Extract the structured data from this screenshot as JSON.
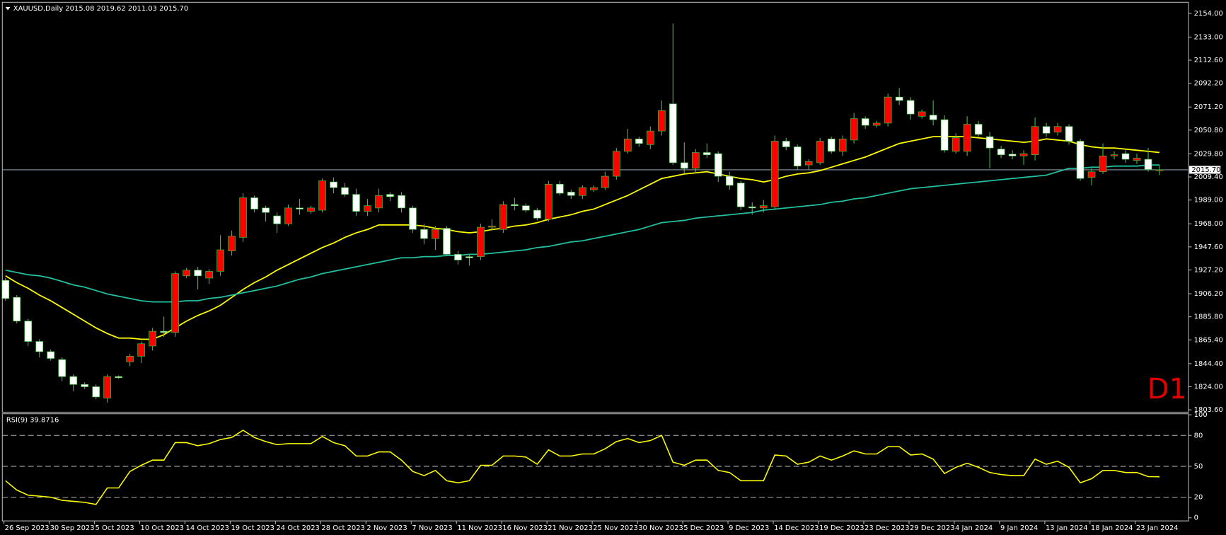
{
  "chart_data": [
    {
      "type": "candlestick",
      "title": "XAUUSD,Daily  2015.08 2019.62 2011.03 2015.70",
      "timeframe_label": "D1",
      "categories": [
        "26 Sep 2023",
        null,
        null,
        null,
        "30 Sep 2023",
        null,
        null,
        null,
        "5 Oct 2023",
        null,
        null,
        null,
        "10 Oct 2023",
        null,
        null,
        null,
        "14 Oct 2023",
        null,
        null,
        null,
        "19 Oct 2023",
        null,
        null,
        null,
        "24 Oct 2023",
        null,
        null,
        null,
        "28 Oct 2023",
        null,
        null,
        null,
        "2 Nov 2023",
        null,
        null,
        null,
        "7 Nov 2023",
        null,
        null,
        null,
        "11 Nov 2023",
        null,
        null,
        null,
        "16 Nov 2023",
        null,
        null,
        null,
        "21 Nov 2023",
        null,
        null,
        null,
        "25 Nov 2023",
        null,
        null,
        null,
        "30 Nov 2023",
        null,
        null,
        null,
        "5 Dec 2023",
        null,
        null,
        null,
        "9 Dec 2023",
        null,
        null,
        null,
        "14 Dec 2023",
        null,
        null,
        null,
        "19 Dec 2023",
        null,
        null,
        null,
        "23 Dec 2023",
        null,
        null,
        null,
        "29 Dec 2023",
        null,
        null,
        null,
        "4 Jan 2024",
        null,
        null,
        null,
        "9 Jan 2024",
        null,
        null,
        null,
        "13 Jan 2024",
        null,
        null,
        null,
        "18 Jan 2024",
        null,
        null,
        null,
        "23 Jan 2024",
        null,
        null
      ],
      "open": [
        1918,
        1903,
        1882,
        1864,
        1855,
        1848,
        1833,
        1826,
        1824,
        1814,
        1833,
        1846,
        1851,
        1860,
        1873,
        1872,
        1922,
        1927,
        1920,
        1926,
        1944,
        1956,
        1991,
        1982,
        1975,
        1968,
        1982,
        1979,
        1980,
        2005,
        2000,
        1994,
        1979,
        1982,
        1994,
        1993,
        1982,
        1963,
        1955,
        1964,
        1941,
        1939,
        1939,
        1965,
        1963,
        1985,
        1984,
        1980,
        1972,
        2003,
        1996,
        1993,
        1998,
        2000,
        2010,
        2032,
        2043,
        2038,
        2050,
        2074,
        2022,
        2017,
        2031,
        2030,
        2010,
        2004,
        1983,
        1982,
        1983,
        2041,
        2036,
        2020,
        2022,
        2043,
        2032,
        2042,
        2061,
        2055,
        2057,
        2080,
        2077,
        2063,
        2064,
        2060,
        2032,
        2032,
        2056,
        2045,
        2034,
        2029.5,
        2028,
        2029,
        2054,
        2049,
        2054,
        2041,
        2009,
        2014,
        2028,
        2030,
        2024,
        2025,
        2015.08
      ],
      "high": [
        1920,
        1905,
        1884,
        1866,
        1857,
        1850,
        1835,
        1828,
        1826,
        1835,
        1834,
        1853,
        1864,
        1876,
        1886,
        1926,
        1929,
        1930,
        1928,
        1958,
        1962,
        1995,
        1993,
        1984,
        1978,
        1985,
        1990,
        1984,
        2008,
        2009,
        2004,
        1999,
        1990,
        1999,
        1996,
        1996,
        1984,
        1968,
        1966,
        1966,
        1944,
        1941,
        1968,
        1972,
        1988,
        1991,
        1986,
        1982,
        2006,
        2006,
        1998,
        2002,
        2002,
        2014,
        2035,
        2052,
        2045,
        2054,
        2077,
        2145,
        2040,
        2034,
        2039,
        2032,
        2014,
        2006,
        1987,
        1989,
        2046,
        2044,
        2038,
        2025,
        2044,
        2045,
        2046,
        2066,
        2063,
        2059,
        2083,
        2088,
        2080,
        2069,
        2077,
        2064,
        2048,
        2063,
        2059,
        2049,
        2037,
        2033,
        2033,
        2062,
        2057,
        2057,
        2056,
        2043,
        2017,
        2039,
        2032,
        2033,
        2030,
        2035,
        2019.62
      ],
      "low": [
        1900,
        1880,
        1860,
        1850,
        1847,
        1829,
        1820,
        1822,
        1813,
        1810,
        1831,
        1842,
        1845,
        1856,
        1868,
        1868,
        1920,
        1910,
        1915,
        1922,
        1940,
        1952,
        1978,
        1970,
        1960,
        1966,
        1976,
        1977,
        1978,
        1995,
        1992,
        1975,
        1975,
        1978,
        1988,
        1978,
        1960,
        1950,
        1945,
        1940,
        1932,
        1931,
        1936,
        1962,
        1960,
        1980,
        1978,
        1971,
        1970,
        1993,
        1990,
        1990,
        1996,
        1998,
        2007,
        2030,
        2036,
        2034,
        2046,
        2020,
        2013,
        2013,
        2026,
        2005,
        1998,
        1980,
        1976,
        1978,
        1980,
        2033,
        2016,
        2016,
        2020,
        2030,
        2028,
        2039,
        2052,
        2053,
        2054,
        2073,
        2060,
        2061,
        2055,
        2031,
        2030,
        2028,
        2045,
        2017,
        2026,
        2025,
        2020,
        2024,
        2045,
        2046,
        2038,
        2006,
        2002,
        2012,
        2025,
        2022,
        2021,
        2014,
        2011.03
      ],
      "close": [
        1902,
        1882,
        1864,
        1855,
        1849,
        1833,
        1826,
        1824,
        1815,
        1833,
        1832,
        1851,
        1862,
        1873,
        1872,
        1924,
        1927,
        1922,
        1926,
        1945,
        1957,
        1991,
        1981,
        1978,
        1968,
        1982,
        1981,
        1982,
        2006,
        2000,
        1994,
        1979,
        1984,
        1993,
        1992,
        1982,
        1963,
        1955,
        1963,
        1941,
        1936,
        1938,
        1965,
        1966,
        1985,
        1984,
        1980,
        1973,
        2003,
        1995,
        1993,
        2000,
        2000,
        2010,
        2032,
        2043,
        2039,
        2050,
        2068,
        2022,
        2017,
        2031,
        2029,
        2010,
        2002,
        1983,
        1982,
        1984,
        2041,
        2036,
        2019,
        2023,
        2041,
        2032,
        2043,
        2061,
        2055,
        2057,
        2080,
        2077,
        2065,
        2067,
        2060,
        2033,
        2044,
        2056,
        2047,
        2035,
        2029,
        2028,
        2030,
        2054,
        2048,
        2054,
        2041,
        2008,
        2014,
        2028,
        2029,
        2025,
        2026,
        2016,
        2015.7
      ],
      "up_color": "#ff0000",
      "down_color": "#ffffff",
      "wick_color": "#3fbf3f",
      "overlays": [
        {
          "color": "#ffff00",
          "values": [
            1922,
            1916,
            1911,
            1905,
            1900,
            1894,
            1888,
            1882,
            1876,
            1871,
            1867,
            1867,
            1866,
            1866,
            1870,
            1876,
            1882,
            1887,
            1891,
            1896,
            1903,
            1910,
            1916,
            1921,
            1927,
            1932,
            1937,
            1942,
            1947,
            1951,
            1956,
            1960,
            1963,
            1967,
            1967,
            1967,
            1967,
            1966,
            1964,
            1963,
            1961,
            1960,
            1961,
            1963,
            1964,
            1966,
            1967,
            1969,
            1972,
            1974,
            1976,
            1979,
            1981,
            1985,
            1989,
            1993,
            1998,
            2003,
            2008,
            2010,
            2012,
            2013,
            2014,
            2012,
            2010,
            2008,
            2007,
            2005,
            2007,
            2010,
            2012,
            2013,
            2015,
            2018,
            2021,
            2024,
            2027,
            2031,
            2035,
            2039,
            2041,
            2043,
            2045,
            2045,
            2045,
            2045,
            2044,
            2043,
            2042,
            2041,
            2040,
            2041,
            2043,
            2042,
            2041,
            2038,
            2036,
            2035,
            2035,
            2034,
            2033,
            2032,
            2031
          ]
        },
        {
          "color": "#20c0a0",
          "values": [
            1927,
            1925,
            1923,
            1922,
            1920,
            1917,
            1914,
            1912,
            1909,
            1906,
            1904,
            1902,
            1900,
            1899,
            1899,
            1899,
            1900,
            1900,
            1902,
            1903,
            1905,
            1907,
            1909,
            1911,
            1913,
            1916,
            1919,
            1921,
            1924,
            1926,
            1928,
            1930,
            1932,
            1934,
            1936,
            1938,
            1938,
            1939,
            1939,
            1940,
            1940,
            1941,
            1941,
            1942,
            1943,
            1944,
            1945,
            1947,
            1948,
            1950,
            1952,
            1953,
            1955,
            1957,
            1959,
            1961,
            1963,
            1966,
            1969,
            1970,
            1971,
            1973,
            1974,
            1975,
            1976,
            1977,
            1978,
            1980,
            1981,
            1982,
            1983,
            1984,
            1985,
            1987,
            1988,
            1990,
            1991,
            1993,
            1995,
            1997,
            1999,
            2000,
            2001,
            2002,
            2003,
            2004,
            2005,
            2006,
            2007,
            2008,
            2009,
            2010,
            2011,
            2014,
            2017,
            2017,
            2018,
            2018,
            2019,
            2019,
            2019,
            2020,
            2020
          ]
        }
      ],
      "current_price": {
        "value": 2015.7,
        "label": "2015.70"
      },
      "ylim": [
        1801.5,
        2163.7
      ],
      "yticks": [
        {
          "value": 1803.6,
          "label": "1803.60"
        },
        {
          "value": 1824,
          "label": "1824.00"
        },
        {
          "value": 1844.4,
          "label": "1844.40"
        },
        {
          "value": 1865.4,
          "label": "1865.40"
        },
        {
          "value": 1885.8,
          "label": "1885.80"
        },
        {
          "value": 1906.2,
          "label": "1906.20"
        },
        {
          "value": 1927.2,
          "label": "1927.20"
        },
        {
          "value": 1947.6,
          "label": "1947.60"
        },
        {
          "value": 1968,
          "label": "1968.00"
        },
        {
          "value": 1989,
          "label": "1989.00"
        },
        {
          "value": 2009.4,
          "label": "2009.40"
        },
        {
          "value": 2029.8,
          "label": "2029.80"
        },
        {
          "value": 2050.8,
          "label": "2050.80"
        },
        {
          "value": 2071.2,
          "label": "2071.20"
        },
        {
          "value": 2092.2,
          "label": "2092.20"
        },
        {
          "value": 2112.6,
          "label": "2112.60"
        },
        {
          "value": 2133,
          "label": "2133.00"
        },
        {
          "value": 2154,
          "label": "2154.00"
        }
      ]
    },
    {
      "type": "line",
      "title": "RSI(9) 39.8716",
      "color": "#ffff00",
      "values": [
        36,
        27,
        22,
        21,
        20,
        17,
        16,
        15,
        13,
        29,
        29,
        45,
        51,
        56,
        56,
        73,
        73,
        70,
        72,
        76,
        78,
        85,
        78,
        74,
        71,
        72,
        72,
        72,
        79,
        73,
        70,
        60,
        60,
        64,
        64,
        56,
        45,
        41,
        46,
        36,
        34,
        36,
        51,
        51,
        60,
        60,
        59,
        52,
        66,
        60,
        60,
        62,
        62,
        67,
        74,
        77,
        73,
        75,
        80,
        54,
        51,
        56,
        56,
        46,
        44,
        36,
        36,
        36,
        61,
        60,
        52,
        54,
        60,
        56,
        60,
        65,
        62,
        62,
        69,
        69,
        61,
        62,
        57,
        43,
        49,
        53,
        49,
        44,
        42,
        41,
        41,
        57,
        52,
        55,
        49,
        34,
        38,
        46,
        46,
        44,
        44,
        40,
        39.8716
      ],
      "levels": [
        20,
        50,
        80
      ],
      "ylim": [
        -3,
        101
      ],
      "yticks": [
        0,
        20,
        50,
        80,
        100
      ]
    }
  ]
}
